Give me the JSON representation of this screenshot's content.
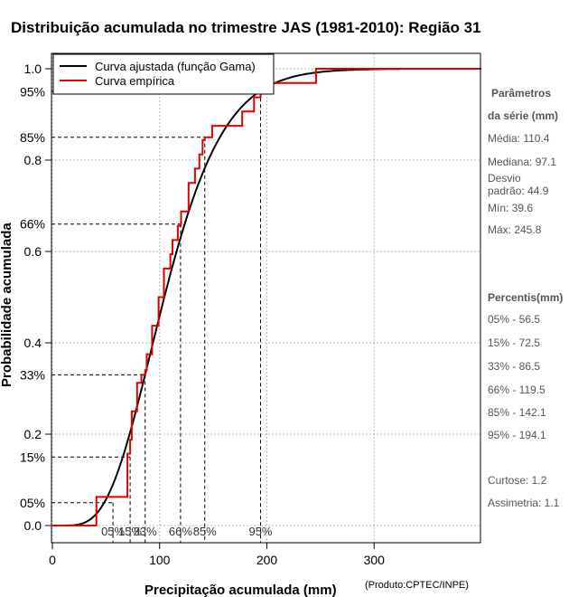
{
  "chart_data": {
    "type": "line",
    "title": "Distribuição acumulada no trimestre JAS (1981-2010): Região 31",
    "xlabel": "Precipitação acumulada (mm)",
    "ylabel": "Probabilidade acumulada",
    "credit": "(Produto:CPTEC/INPE)",
    "xlim": [
      0,
      400
    ],
    "ylim": [
      0,
      1.0
    ],
    "x_ticks": [
      0,
      100,
      200,
      300
    ],
    "y_ticks": [
      0.0,
      0.2,
      0.4,
      0.6,
      0.8,
      1.0
    ],
    "y_tick_labels": [
      "0.0",
      "0.2",
      "0.4",
      "0.6",
      "0.8",
      "1.0"
    ],
    "grid": true,
    "legend": {
      "placement": "top-left",
      "entries": [
        {
          "label": "Curva ajustada (função Gama)",
          "color": "#000000"
        },
        {
          "label": "Curva empírica",
          "color": "#e00000"
        }
      ]
    },
    "series": [
      {
        "name": "Curva ajustada (função Gama)",
        "color": "#000000",
        "type": "gamma_cdf",
        "shape": 6.05,
        "scale": 18.25,
        "x_range": [
          0,
          325
        ]
      },
      {
        "name": "Curva empírica",
        "color": "#e00000",
        "type": "step",
        "x": [
          0,
          39.6,
          41,
          56.5,
          66,
          70,
          72.5,
          74,
          79,
          83,
          86.5,
          88,
          93,
          97.1,
          99,
          100,
          104,
          108,
          110,
          112,
          113,
          117,
          119.5,
          120,
          124,
          127,
          133,
          137,
          140,
          142.1,
          149,
          165,
          177,
          188,
          194.1,
          200,
          204,
          245.8,
          400
        ],
        "y": [
          0,
          0,
          0.0625,
          0.0625,
          0.0625,
          0.1575,
          0.1875,
          0.25,
          0.3125,
          0.33,
          0.34,
          0.375,
          0.4375,
          0.4375,
          0.5,
          0.5,
          0.5625,
          0.5625,
          0.5938,
          0.625,
          0.625,
          0.6563,
          0.66,
          0.6875,
          0.6875,
          0.75,
          0.7813,
          0.8125,
          0.8438,
          0.85,
          0.875,
          0.875,
          0.9063,
          0.9375,
          0.95,
          0.9688,
          0.9688,
          1.0,
          1.0
        ]
      }
    ],
    "percentile_markers": [
      {
        "label": "05%",
        "p": 0.05,
        "value": 56.5
      },
      {
        "label": "15%",
        "p": 0.15,
        "value": 72.5
      },
      {
        "label": "33%",
        "p": 0.33,
        "value": 86.5
      },
      {
        "label": "66%",
        "p": 0.66,
        "value": 119.5
      },
      {
        "label": "85%",
        "p": 0.85,
        "value": 142.1
      },
      {
        "label": "95%",
        "p": 0.95,
        "value": 194.1
      }
    ],
    "side_panel": {
      "params_title_1": "Parâmetros",
      "params_title_2": "da série (mm)",
      "params": [
        "Média: 110.4",
        "Mediana: 97.1",
        "Desvio",
        "padrão: 44.9",
        "Mín: 39.6",
        "Máx: 245.8"
      ],
      "percentis_title": "Percentis(mm)",
      "percentis": [
        "05% - 56.5",
        "15% - 72.5",
        "33% - 86.5",
        "66% - 119.5",
        "85% - 142.1",
        "95% - 194.1"
      ],
      "extra": [
        "Curtose: 1.2",
        "Assimetria: 1.1"
      ]
    }
  }
}
